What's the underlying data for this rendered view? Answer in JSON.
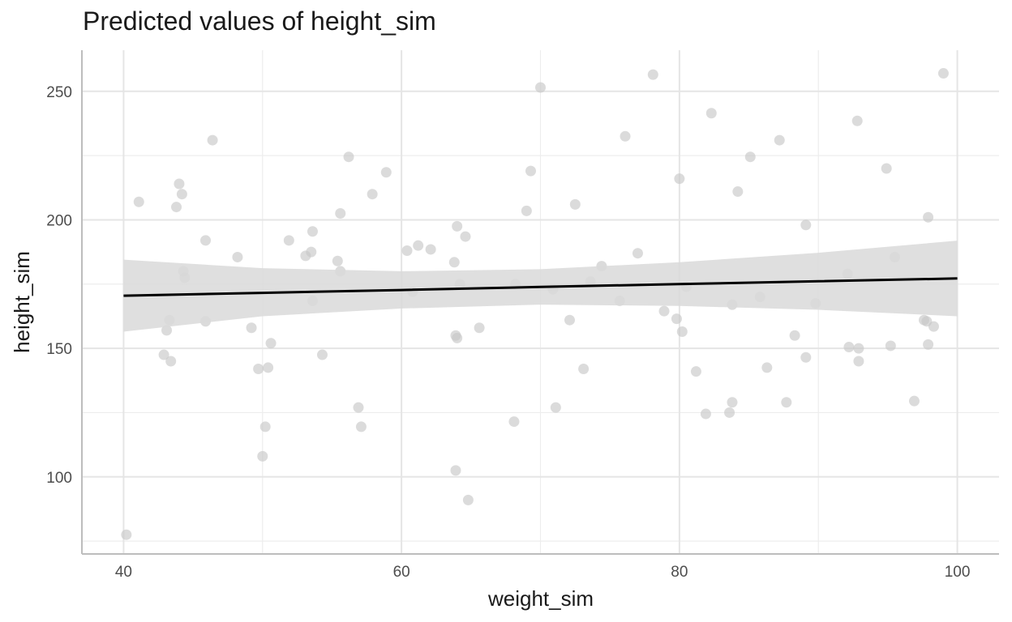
{
  "chart_data": {
    "type": "scatter",
    "title": "Predicted values of height_sim",
    "xlabel": "weight_sim",
    "ylabel": "height_sim",
    "xlim": [
      37,
      103
    ],
    "ylim": [
      70,
      266
    ],
    "x_ticks": [
      40,
      60,
      80,
      100
    ],
    "y_ticks": [
      100,
      150,
      200,
      250
    ],
    "grid": true,
    "colors": {
      "points": "#c8c8c8",
      "fit_line": "#000000",
      "ribbon": "#d9d9d9",
      "grid": "#e5e5e5",
      "axis": "#bdbdbd"
    },
    "points": [
      {
        "x": 40.2,
        "y": 77.5
      },
      {
        "x": 41.1,
        "y": 207
      },
      {
        "x": 42.9,
        "y": 147.5
      },
      {
        "x": 43.1,
        "y": 157
      },
      {
        "x": 43.3,
        "y": 161
      },
      {
        "x": 43.4,
        "y": 145
      },
      {
        "x": 43.8,
        "y": 205
      },
      {
        "x": 44.0,
        "y": 214
      },
      {
        "x": 44.2,
        "y": 210
      },
      {
        "x": 44.3,
        "y": 180
      },
      {
        "x": 44.4,
        "y": 177.5
      },
      {
        "x": 45.9,
        "y": 192
      },
      {
        "x": 45.9,
        "y": 160.5
      },
      {
        "x": 46.4,
        "y": 231
      },
      {
        "x": 48.2,
        "y": 185.5
      },
      {
        "x": 49.2,
        "y": 158
      },
      {
        "x": 49.7,
        "y": 142
      },
      {
        "x": 50.0,
        "y": 108
      },
      {
        "x": 50.2,
        "y": 119.5
      },
      {
        "x": 50.4,
        "y": 142.5
      },
      {
        "x": 50.6,
        "y": 152
      },
      {
        "x": 51.9,
        "y": 192
      },
      {
        "x": 53.1,
        "y": 186
      },
      {
        "x": 53.5,
        "y": 187.5
      },
      {
        "x": 53.6,
        "y": 168.5
      },
      {
        "x": 53.6,
        "y": 195.5
      },
      {
        "x": 54.3,
        "y": 147.5
      },
      {
        "x": 55.4,
        "y": 184
      },
      {
        "x": 55.6,
        "y": 180
      },
      {
        "x": 55.6,
        "y": 202.5
      },
      {
        "x": 56.2,
        "y": 224.5
      },
      {
        "x": 56.9,
        "y": 127
      },
      {
        "x": 57.1,
        "y": 119.5
      },
      {
        "x": 57.9,
        "y": 210
      },
      {
        "x": 58.9,
        "y": 218.5
      },
      {
        "x": 60.4,
        "y": 188
      },
      {
        "x": 60.8,
        "y": 172
      },
      {
        "x": 61.2,
        "y": 190
      },
      {
        "x": 62.1,
        "y": 188.5
      },
      {
        "x": 63.8,
        "y": 183.5
      },
      {
        "x": 63.9,
        "y": 155
      },
      {
        "x": 64.0,
        "y": 197.5
      },
      {
        "x": 64.0,
        "y": 154
      },
      {
        "x": 64.2,
        "y": 175
      },
      {
        "x": 64.6,
        "y": 193.5
      },
      {
        "x": 64.8,
        "y": 91
      },
      {
        "x": 65.6,
        "y": 158
      },
      {
        "x": 63.9,
        "y": 102.5
      },
      {
        "x": 68.1,
        "y": 121.5
      },
      {
        "x": 68.2,
        "y": 175
      },
      {
        "x": 69.0,
        "y": 203.5
      },
      {
        "x": 69.3,
        "y": 219
      },
      {
        "x": 70.0,
        "y": 251.5
      },
      {
        "x": 70.9,
        "y": 173
      },
      {
        "x": 71.1,
        "y": 127
      },
      {
        "x": 72.1,
        "y": 161
      },
      {
        "x": 72.5,
        "y": 206
      },
      {
        "x": 73.1,
        "y": 142
      },
      {
        "x": 73.6,
        "y": 176
      },
      {
        "x": 74.4,
        "y": 182
      },
      {
        "x": 75.7,
        "y": 168.5
      },
      {
        "x": 76.1,
        "y": 232.5
      },
      {
        "x": 77.0,
        "y": 187
      },
      {
        "x": 78.1,
        "y": 256.5
      },
      {
        "x": 78.9,
        "y": 164.5
      },
      {
        "x": 79.8,
        "y": 161.5
      },
      {
        "x": 80.0,
        "y": 216
      },
      {
        "x": 80.2,
        "y": 156.5
      },
      {
        "x": 80.5,
        "y": 174
      },
      {
        "x": 81.2,
        "y": 141
      },
      {
        "x": 81.9,
        "y": 124.5
      },
      {
        "x": 82.3,
        "y": 241.5
      },
      {
        "x": 83.6,
        "y": 125
      },
      {
        "x": 83.8,
        "y": 129
      },
      {
        "x": 83.8,
        "y": 167
      },
      {
        "x": 84.2,
        "y": 211
      },
      {
        "x": 85.1,
        "y": 224.5
      },
      {
        "x": 85.8,
        "y": 170
      },
      {
        "x": 86.3,
        "y": 142.5
      },
      {
        "x": 87.2,
        "y": 231
      },
      {
        "x": 87.7,
        "y": 129
      },
      {
        "x": 88.3,
        "y": 155
      },
      {
        "x": 89.1,
        "y": 146.5
      },
      {
        "x": 89.1,
        "y": 198
      },
      {
        "x": 89.8,
        "y": 167.5
      },
      {
        "x": 92.1,
        "y": 179
      },
      {
        "x": 92.2,
        "y": 150.5
      },
      {
        "x": 92.8,
        "y": 238.5
      },
      {
        "x": 92.9,
        "y": 150
      },
      {
        "x": 92.9,
        "y": 145
      },
      {
        "x": 94.9,
        "y": 220
      },
      {
        "x": 95.2,
        "y": 151
      },
      {
        "x": 95.5,
        "y": 185.5
      },
      {
        "x": 96.9,
        "y": 129.5
      },
      {
        "x": 97.6,
        "y": 161
      },
      {
        "x": 97.9,
        "y": 201
      },
      {
        "x": 97.9,
        "y": 151.5
      },
      {
        "x": 98.3,
        "y": 158.5
      },
      {
        "x": 99.0,
        "y": 257
      },
      {
        "x": 97.8,
        "y": 160.5
      }
    ],
    "fit": {
      "x": [
        40,
        50,
        60,
        70,
        80,
        90,
        100
      ],
      "y": [
        170.5,
        171.6,
        172.7,
        173.9,
        175.0,
        176.1,
        177.2
      ],
      "lower": [
        156.5,
        162.5,
        165.5,
        167.0,
        166.5,
        165.0,
        162.5
      ],
      "upper": [
        184.5,
        181.2,
        180.0,
        180.8,
        183.5,
        187.2,
        191.9
      ]
    }
  }
}
